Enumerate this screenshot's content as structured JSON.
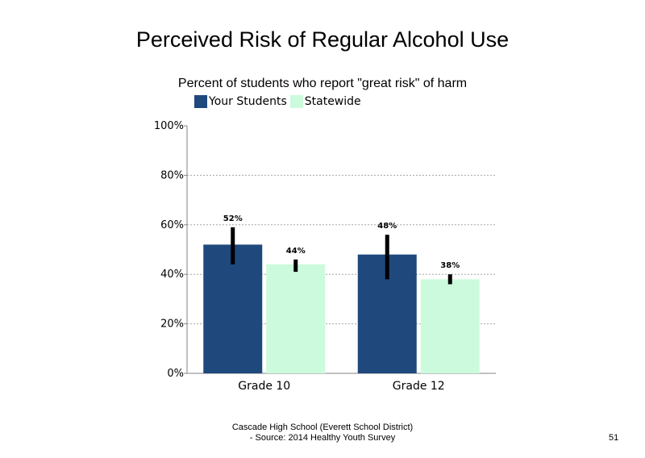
{
  "chart_data": {
    "type": "bar",
    "title": "Perceived Risk of Regular Alcohol Use",
    "subtitle": "Percent of students who report \"great risk\" of harm",
    "categories": [
      "Grade 10",
      "Grade 12"
    ],
    "series": [
      {
        "name": "Your Students",
        "values": [
          52,
          48
        ],
        "labels": [
          "52%",
          "48%"
        ],
        "error_low": [
          44,
          38
        ],
        "error_high": [
          59,
          56
        ],
        "color": "#1f497d"
      },
      {
        "name": "Statewide",
        "values": [
          44,
          38
        ],
        "labels": [
          "44%",
          "38%"
        ],
        "error_low": [
          41,
          36
        ],
        "error_high": [
          46,
          40
        ],
        "color": "#ccfadc"
      }
    ],
    "yticks": [
      "0%",
      "20%",
      "40%",
      "60%",
      "80%",
      "100%"
    ],
    "ylim": [
      0,
      100
    ],
    "grid": true,
    "legend": "top-left"
  },
  "footer": {
    "line1": "Cascade High School (Everett School District)",
    "line2": "- Source: 2014 Healthy  Youth Survey",
    "page_number": "51"
  }
}
